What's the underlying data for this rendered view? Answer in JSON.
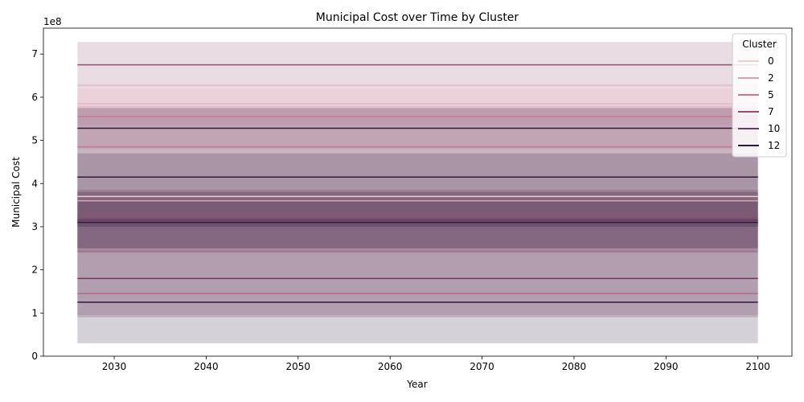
{
  "chart_data": {
    "type": "line",
    "title": "Municipal Cost over Time by Cluster",
    "xlabel": "Year",
    "ylabel": "Municipal Cost",
    "y_offset_label": "1e8",
    "xlim": [
      2022.3,
      2103.7
    ],
    "ylim": [
      0,
      760000000
    ],
    "x_ticks": [
      2030,
      2040,
      2050,
      2060,
      2070,
      2080,
      2090,
      2100
    ],
    "y_ticks": [
      0,
      100000000,
      200000000,
      300000000,
      400000000,
      500000000,
      600000000,
      700000000
    ],
    "y_tick_labels": [
      "0",
      "1",
      "2",
      "3",
      "4",
      "5",
      "6",
      "7"
    ],
    "x_range": [
      2026,
      2100
    ],
    "grid": false,
    "legend": {
      "title": "Cluster",
      "placement": "top-right",
      "entries": [
        {
          "label": "0",
          "color": "#eacfd1"
        },
        {
          "label": "2",
          "color": "#d7a1ae"
        },
        {
          "label": "5",
          "color": "#c27a94"
        },
        {
          "label": "7",
          "color": "#93506f"
        },
        {
          "label": "10",
          "color": "#6d3a66"
        },
        {
          "label": "12",
          "color": "#2d1b3e"
        }
      ]
    },
    "series": [
      {
        "color": "#eacfd1",
        "value": 370000000,
        "band": [
          240000000,
          620000000
        ]
      },
      {
        "color": "#e4b6bf",
        "value": 585000000,
        "band": [
          535000000,
          625000000
        ]
      },
      {
        "color": "#d7a1ae",
        "value": 360000000,
        "band": [
          240000000,
          385000000
        ]
      },
      {
        "color": "#c27a94",
        "value": 555000000,
        "band": [
          480000000,
          630000000
        ]
      },
      {
        "color": "#c27a94",
        "value": 485000000,
        "band": [
          300000000,
          580000000
        ]
      },
      {
        "color": "#b06a8a",
        "value": 145000000,
        "band": [
          95000000,
          245000000
        ]
      },
      {
        "color": "#93506f",
        "value": 325000000,
        "band": [
          250000000,
          385000000
        ]
      },
      {
        "color": "#93506f",
        "value": 675000000,
        "band": [
          625000000,
          728000000
        ]
      },
      {
        "color": "#6d3a66",
        "value": 180000000,
        "band": [
          90000000,
          320000000
        ]
      },
      {
        "color": "#6d3a66",
        "value": 315000000,
        "band": [
          240000000,
          360000000
        ]
      },
      {
        "color": "#2d1b3e",
        "value": 528000000,
        "band": [
          250000000,
          575000000
        ]
      },
      {
        "color": "#2d1b3e",
        "value": 415000000,
        "band": [
          300000000,
          470000000
        ]
      },
      {
        "color": "#2d1b3e",
        "value": 310000000,
        "band": [
          220000000,
          380000000
        ]
      },
      {
        "color": "#2d1b3e",
        "value": 125000000,
        "band": [
          30000000,
          220000000
        ]
      }
    ]
  }
}
